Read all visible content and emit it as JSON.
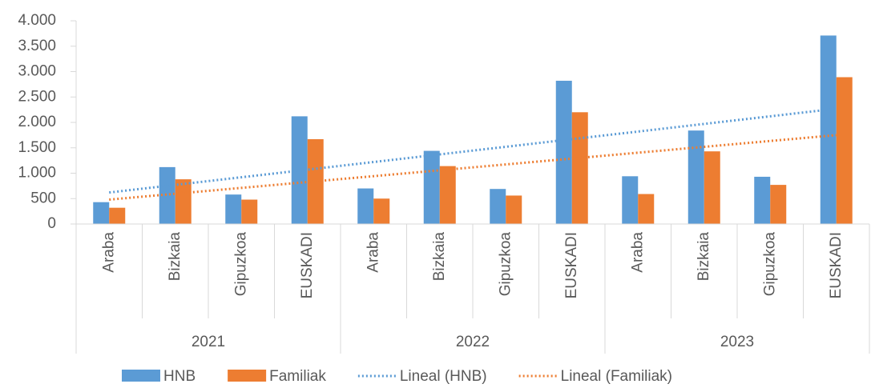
{
  "chart_data": {
    "type": "bar",
    "groups": [
      {
        "name": "2021",
        "categories": [
          "Araba",
          "Bizkaia",
          "Gipuzkoa",
          "EUSKADI"
        ]
      },
      {
        "name": "2022",
        "categories": [
          "Araba",
          "Bizkaia",
          "Gipuzkoa",
          "EUSKADI"
        ]
      },
      {
        "name": "2023",
        "categories": [
          "Araba",
          "Bizkaia",
          "Gipuzkoa",
          "EUSKADI"
        ]
      }
    ],
    "series": [
      {
        "name": "HNB",
        "color": "#5b9bd5",
        "values": [
          430,
          1120,
          580,
          2120,
          700,
          1440,
          690,
          2820,
          940,
          1840,
          930,
          3710
        ]
      },
      {
        "name": "Familiak",
        "color": "#ed7d31",
        "values": [
          320,
          880,
          480,
          1670,
          500,
          1140,
          560,
          2200,
          590,
          1430,
          770,
          2890
        ]
      }
    ],
    "trendlines": [
      {
        "name": "Lineal (HNB)",
        "color": "#5b9bd5",
        "values": [
          620,
          2270
        ]
      },
      {
        "name": "Lineal (Familiak)",
        "color": "#ed7d31",
        "values": [
          480,
          1750
        ]
      }
    ],
    "ylim": [
      0,
      4000
    ],
    "yticks": [
      0,
      500,
      {
        "value": 1000,
        "label": "1.000"
      },
      {
        "value": 1500,
        "label": "1.500"
      },
      {
        "value": 2000,
        "label": "2.000"
      },
      {
        "value": 2500,
        "label": "2.500"
      },
      {
        "value": 3000,
        "label": "3.000"
      },
      {
        "value": 3500,
        "label": "3.500"
      },
      {
        "value": 4000,
        "label": "4.000"
      }
    ]
  }
}
